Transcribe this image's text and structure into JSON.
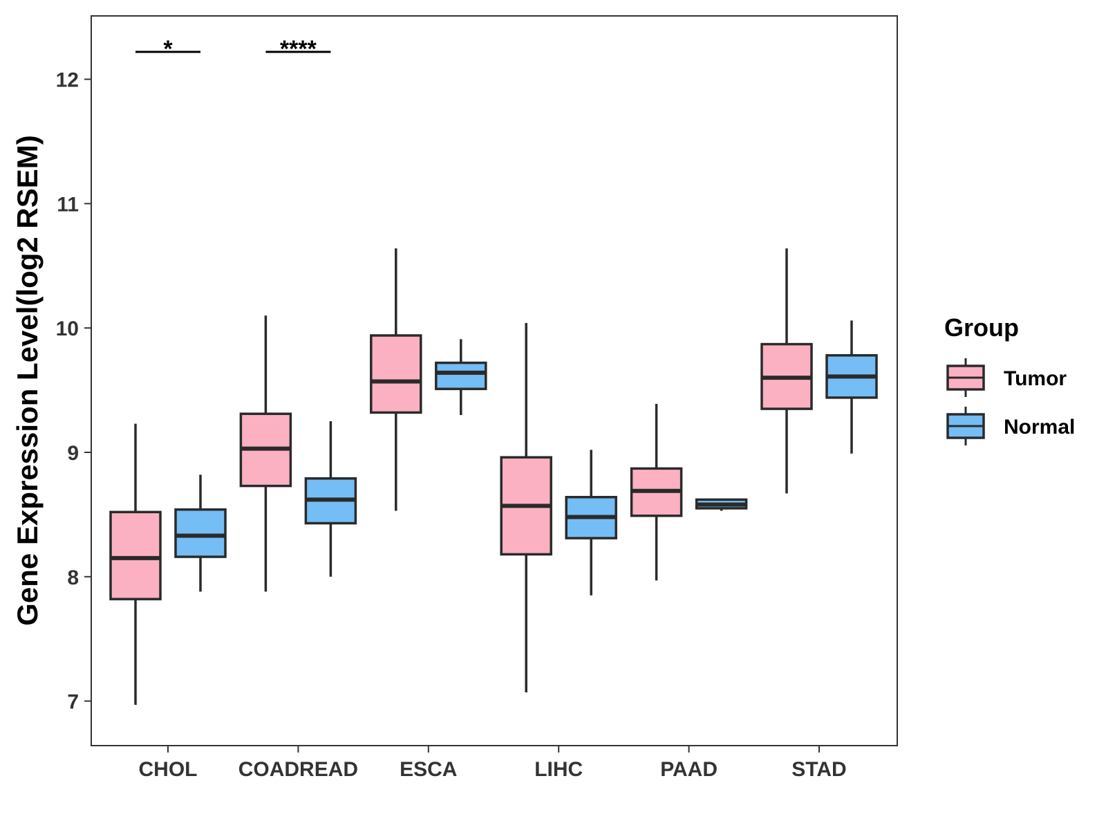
{
  "chart_data": {
    "type": "boxplot",
    "title": "",
    "xlabel": "",
    "ylabel": "Gene Expression Level(log2 RSEM)",
    "ylim": [
      6.63,
      12.5
    ],
    "yticks": [
      7,
      8,
      9,
      10,
      11,
      12
    ],
    "grid": false,
    "categories": [
      "CHOL",
      "COADREAD",
      "ESCA",
      "LIHC",
      "PAAD",
      "STAD"
    ],
    "legend": {
      "title": "Group",
      "placement": "right",
      "items": [
        {
          "name": "Tumor",
          "color": "#fbb1c2"
        },
        {
          "name": "Normal",
          "color": "#74bdf5"
        }
      ]
    },
    "series": [
      {
        "name": "Tumor",
        "color": "#fbb1c2",
        "boxes": [
          {
            "category": "CHOL",
            "min": 6.97,
            "q1": 7.82,
            "median": 8.15,
            "q3": 8.52,
            "max": 9.23
          },
          {
            "category": "COADREAD",
            "min": 7.88,
            "q1": 8.73,
            "median": 9.03,
            "q3": 9.31,
            "max": 10.1
          },
          {
            "category": "ESCA",
            "min": 8.53,
            "q1": 9.32,
            "median": 9.57,
            "q3": 9.94,
            "max": 10.64
          },
          {
            "category": "LIHC",
            "min": 7.07,
            "q1": 8.18,
            "median": 8.57,
            "q3": 8.96,
            "max": 10.04
          },
          {
            "category": "PAAD",
            "min": 7.97,
            "q1": 8.49,
            "median": 8.69,
            "q3": 8.87,
            "max": 9.39
          },
          {
            "category": "STAD",
            "min": 8.67,
            "q1": 9.35,
            "median": 9.6,
            "q3": 9.87,
            "max": 10.64
          }
        ]
      },
      {
        "name": "Normal",
        "color": "#74bdf5",
        "boxes": [
          {
            "category": "CHOL",
            "min": 7.88,
            "q1": 8.16,
            "median": 8.33,
            "q3": 8.54,
            "max": 8.82
          },
          {
            "category": "COADREAD",
            "min": 8.0,
            "q1": 8.43,
            "median": 8.62,
            "q3": 8.79,
            "max": 9.25
          },
          {
            "category": "ESCA",
            "min": 9.3,
            "q1": 9.51,
            "median": 9.64,
            "q3": 9.72,
            "max": 9.91
          },
          {
            "category": "LIHC",
            "min": 7.85,
            "q1": 8.31,
            "median": 8.48,
            "q3": 8.64,
            "max": 9.02
          },
          {
            "category": "PAAD",
            "min": 8.53,
            "q1": 8.55,
            "median": 8.58,
            "q3": 8.62,
            "max": 8.62
          },
          {
            "category": "STAD",
            "min": 8.99,
            "q1": 9.44,
            "median": 9.61,
            "q3": 9.78,
            "max": 10.06
          }
        ]
      }
    ],
    "significance": [
      {
        "category": "CHOL",
        "label": "*"
      },
      {
        "category": "COADREAD",
        "label": "****"
      }
    ]
  }
}
